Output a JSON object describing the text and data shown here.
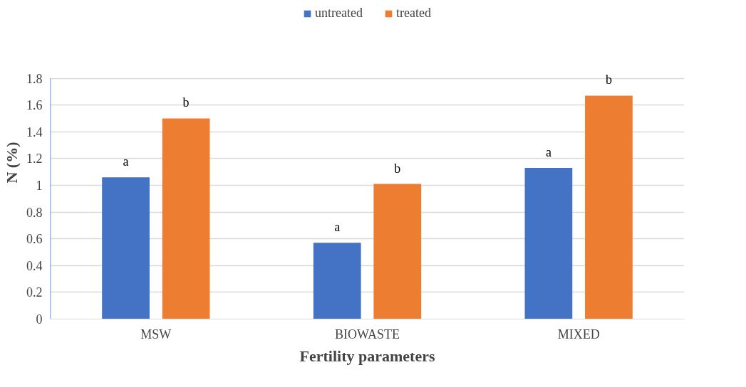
{
  "chart_data": {
    "type": "bar",
    "xlabel": "Fertility parameters",
    "ylabel": "N (%)",
    "categories": [
      "MSW",
      "BIOWASTE",
      "MIXED"
    ],
    "series": [
      {
        "name": "untreated",
        "color": "#4472c4",
        "values": [
          1.06,
          0.57,
          1.13
        ],
        "value_labels": [
          "a",
          "a",
          "a"
        ]
      },
      {
        "name": "treated",
        "color": "#ed7d31",
        "values": [
          1.5,
          1.01,
          1.67
        ],
        "value_labels": [
          "b",
          "b",
          "b"
        ]
      }
    ],
    "ylim": [
      0,
      1.8
    ],
    "yticks": [
      0,
      {
        "value": 0.2,
        "label": "0.2"
      },
      {
        "value": 0.4,
        "label": "0.4"
      },
      {
        "value": 0.6,
        "label": "0.6"
      },
      {
        "value": 0.8,
        "label": "0.8"
      },
      1,
      {
        "value": 1.2,
        "label": "1.2"
      },
      {
        "value": 1.4,
        "label": "1.4"
      },
      {
        "value": 1.6,
        "label": "1.6"
      },
      {
        "value": 1.8,
        "label": "1.8"
      }
    ],
    "grid": "y",
    "legend": "top"
  }
}
